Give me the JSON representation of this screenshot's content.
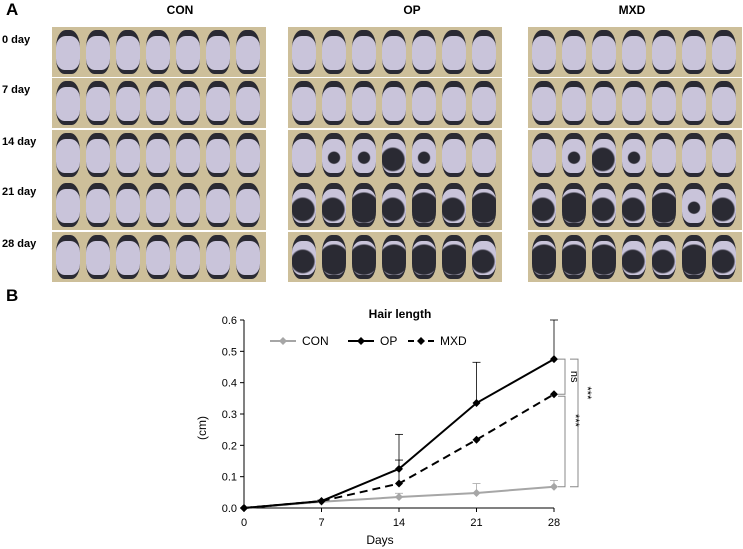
{
  "panels": {
    "a": "A",
    "b": "B"
  },
  "groups": [
    "CON",
    "OP",
    "MXD"
  ],
  "rows": [
    "0 day",
    "7 day",
    "14 day",
    "21 day",
    "28 day"
  ],
  "colors": {
    "con": "#a6a6a6",
    "op": "#000000",
    "mxd": "#000000",
    "skin": "#c9c4da",
    "fur": "#2a2a33",
    "background": "#cdbf9a"
  },
  "chart_data": {
    "type": "line",
    "title": "Hair length",
    "xlabel": "Days",
    "ylabel": "(cm)",
    "x": [
      0,
      7,
      14,
      21,
      28
    ],
    "xticks": [
      "0",
      "7",
      "14",
      "21",
      "28"
    ],
    "yticks": [
      "0.0",
      "0.1",
      "0.2",
      "0.3",
      "0.4",
      "0.5",
      "0.6"
    ],
    "ylim": [
      0,
      0.6
    ],
    "legend_position": "top-left",
    "series": [
      {
        "name": "CON",
        "values": [
          0.0,
          0.02,
          0.035,
          0.048,
          0.068
        ],
        "errors": [
          0,
          0.003,
          0.012,
          0.03,
          0.02
        ],
        "color": "#a6a6a6",
        "dash": false
      },
      {
        "name": "OP",
        "values": [
          0.0,
          0.022,
          0.125,
          0.335,
          0.475
        ],
        "errors": [
          0,
          0.003,
          0.11,
          0.13,
          0.125
        ],
        "color": "#000000",
        "dash": false
      },
      {
        "name": "MXD",
        "values": [
          0.0,
          0.022,
          0.078,
          0.218,
          0.363
        ],
        "errors": [
          0,
          0.003,
          0.075,
          0,
          0
        ],
        "color": "#000000",
        "dash": true
      }
    ],
    "annotations": [
      "ns",
      "***",
      "***"
    ]
  }
}
